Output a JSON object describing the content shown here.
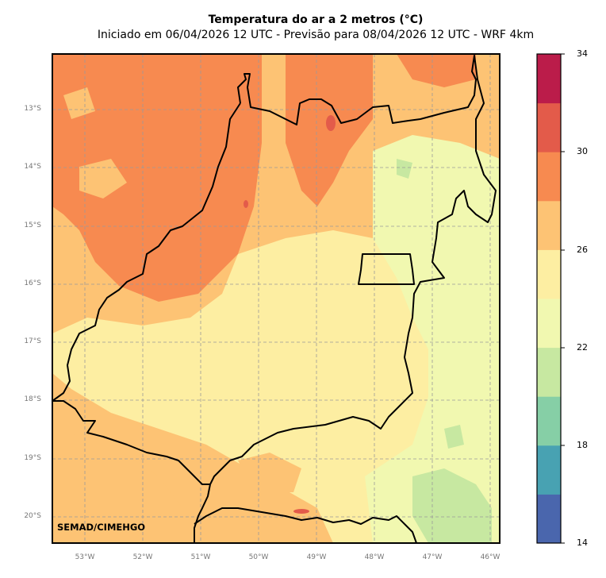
{
  "title": "Temperatura do ar a 2 metros (°C)",
  "subtitle": "Iniciado em 06/04/2026 12 UTC - Previsão para 08/04/2026 12 UTC - WRF 4km",
  "credit": "SEMAD/CIMEHGO",
  "lat_labels": [
    "13°S",
    "14°S",
    "15°S",
    "16°S",
    "17°S",
    "18°S",
    "19°S",
    "20°S"
  ],
  "lon_labels": [
    "53°W",
    "52°W",
    "51°W",
    "50°W",
    "49°W",
    "48°W",
    "47°W",
    "46°W"
  ],
  "colorbar": {
    "tick_labels": [
      "34",
      "30",
      "26",
      "22",
      "18",
      "14"
    ],
    "range": [
      14,
      34
    ],
    "colors": [
      "#4a66ad",
      "#48a2b2",
      "#86cfa6",
      "#c7e8a1",
      "#f1f8b0",
      "#fdeea2",
      "#fdc374",
      "#f78a50",
      "#e35b4a",
      "#bb1c4a"
    ]
  },
  "legend_colors": {
    "warm_orange": "#f78a50",
    "light_orange": "#fdc374",
    "pale_yellow": "#fdeea2",
    "yellow_green": "#f1f8b0",
    "light_green": "#c7e8a1",
    "red": "#e35b4a"
  }
}
